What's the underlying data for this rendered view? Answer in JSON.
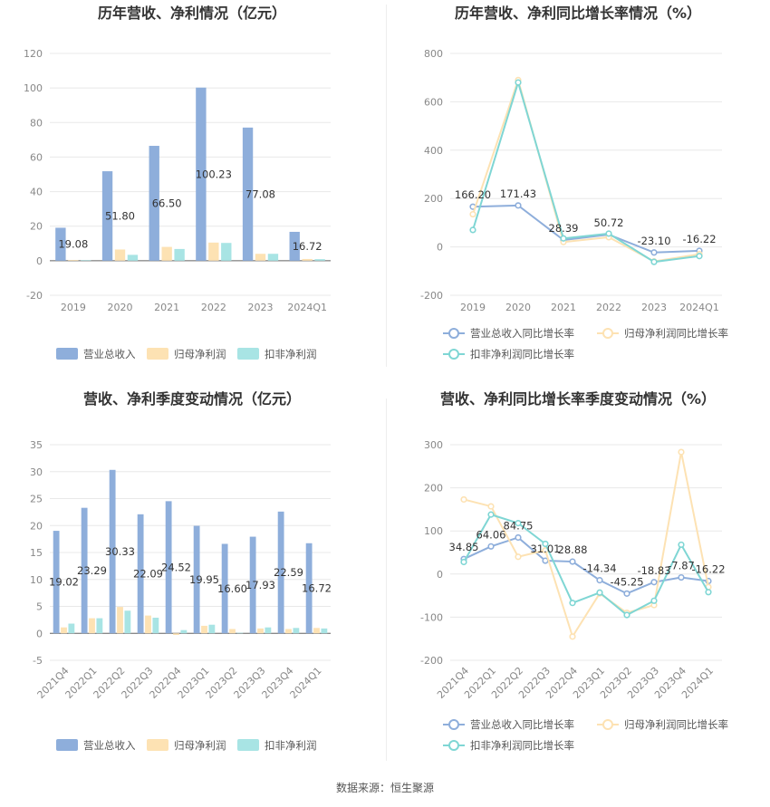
{
  "source_text": "数据来源：恒生聚源",
  "colors": {
    "revenue": "#8eaedb",
    "net_profit": "#fde2b3",
    "deducted_profit": "#a8e4e4",
    "revenue_line": "#8eaedb",
    "net_line": "#fde2b3",
    "deducted_line": "#7fd6d4",
    "grid": "#e8e8e8",
    "axis_text": "#888888"
  },
  "chart_data": [
    {
      "id": "annual-bar",
      "type": "bar",
      "title": "历年营收、净利情况（亿元）",
      "categories": [
        "2019",
        "2020",
        "2021",
        "2022",
        "2023",
        "2024Q1"
      ],
      "yticks": [
        "120",
        "100",
        "80",
        "60",
        "40",
        "20",
        "0",
        "-20"
      ],
      "ylim": [
        -20,
        120
      ],
      "series": [
        {
          "name": "营业总收入",
          "values": [
            19.08,
            51.8,
            66.5,
            100.23,
            77.08,
            16.72
          ],
          "labels": [
            "19.08",
            "51.80",
            "66.50",
            "100.23",
            "77.08",
            "16.72"
          ]
        },
        {
          "name": "归母净利润",
          "values": [
            0.4,
            6.5,
            8.0,
            10.5,
            4.0,
            1.0
          ]
        },
        {
          "name": "扣非净利润",
          "values": [
            0.3,
            3.4,
            6.8,
            10.3,
            4.0,
            0.9
          ]
        }
      ],
      "legend_position": "bottom"
    },
    {
      "id": "annual-line",
      "type": "line",
      "title": "历年营收、净利同比增长率情况（%）",
      "categories": [
        "2019",
        "2020",
        "2021",
        "2022",
        "2023",
        "2024Q1"
      ],
      "yticks": [
        "800",
        "600",
        "400",
        "200",
        "0",
        "-200"
      ],
      "ylim": [
        -200,
        800
      ],
      "series": [
        {
          "name": "营业总收入同比增长率",
          "values": [
            166.2,
            171.43,
            28.39,
            50.72,
            -23.1,
            -16.22
          ],
          "labels": [
            "166.20",
            "171.43",
            "28.39",
            "50.72",
            "-23.10",
            "-16.22"
          ]
        },
        {
          "name": "归母净利润同比增长率",
          "values": [
            135,
            690,
            20,
            40,
            -60,
            -30
          ]
        },
        {
          "name": "扣非净利润同比增长率",
          "values": [
            70,
            680,
            35,
            55,
            -62,
            -38
          ]
        }
      ],
      "legend_position": "bottom"
    },
    {
      "id": "quarterly-bar",
      "type": "bar",
      "title": "营收、净利季度变动情况（亿元）",
      "categories": [
        "2021Q4",
        "2022Q1",
        "2022Q2",
        "2022Q3",
        "2022Q4",
        "2023Q1",
        "2023Q2",
        "2023Q3",
        "2023Q4",
        "2024Q1"
      ],
      "yticks": [
        "35",
        "30",
        "25",
        "20",
        "15",
        "10",
        "5",
        "0",
        "-5"
      ],
      "ylim": [
        -5,
        35
      ],
      "series": [
        {
          "name": "营业总收入",
          "values": [
            19.02,
            23.29,
            30.33,
            22.09,
            24.52,
            19.95,
            16.6,
            17.93,
            22.59,
            16.72
          ],
          "labels": [
            "19.02",
            "23.29",
            "30.33",
            "22.09",
            "24.52",
            "19.95",
            "16.60",
            "17.93",
            "22.59",
            "16.72"
          ]
        },
        {
          "name": "归母净利润",
          "values": [
            1.1,
            2.8,
            4.9,
            3.3,
            -0.3,
            1.4,
            0.8,
            0.9,
            0.8,
            1.0
          ]
        },
        {
          "name": "扣非净利润",
          "values": [
            1.8,
            2.8,
            4.2,
            2.9,
            0.6,
            1.6,
            0.1,
            1.1,
            1.0,
            0.9
          ]
        }
      ],
      "legend_position": "bottom"
    },
    {
      "id": "quarterly-line",
      "type": "line",
      "title": "营收、净利同比增长率季度变动情况（%）",
      "categories": [
        "2021Q4",
        "2022Q1",
        "2022Q2",
        "2022Q3",
        "2022Q4",
        "2023Q1",
        "2023Q2",
        "2023Q3",
        "2023Q4",
        "2024Q1"
      ],
      "yticks": [
        "300",
        "200",
        "100",
        "0",
        "-100",
        "-200"
      ],
      "ylim": [
        -200,
        300
      ],
      "series": [
        {
          "name": "营业总收入同比增长率",
          "values": [
            34.85,
            64.06,
            84.75,
            31.01,
            28.88,
            -14.34,
            -45.25,
            -18.83,
            -7.87,
            -16.22
          ],
          "labels": [
            "34.85",
            "64.06",
            "84.75",
            "31.01",
            "28.88",
            "-14.34",
            "-45.25",
            "-18.83",
            "-7.87",
            "-16.22"
          ]
        },
        {
          "name": "归母净利润同比增长率",
          "values": [
            173,
            157,
            40,
            55,
            -145,
            -45,
            -90,
            -72,
            283,
            -30
          ]
        },
        {
          "name": "扣非净利润同比增长率",
          "values": [
            28,
            138,
            118,
            70,
            -67,
            -43,
            -95,
            -62,
            68,
            -42
          ]
        }
      ],
      "legend_position": "bottom"
    }
  ]
}
